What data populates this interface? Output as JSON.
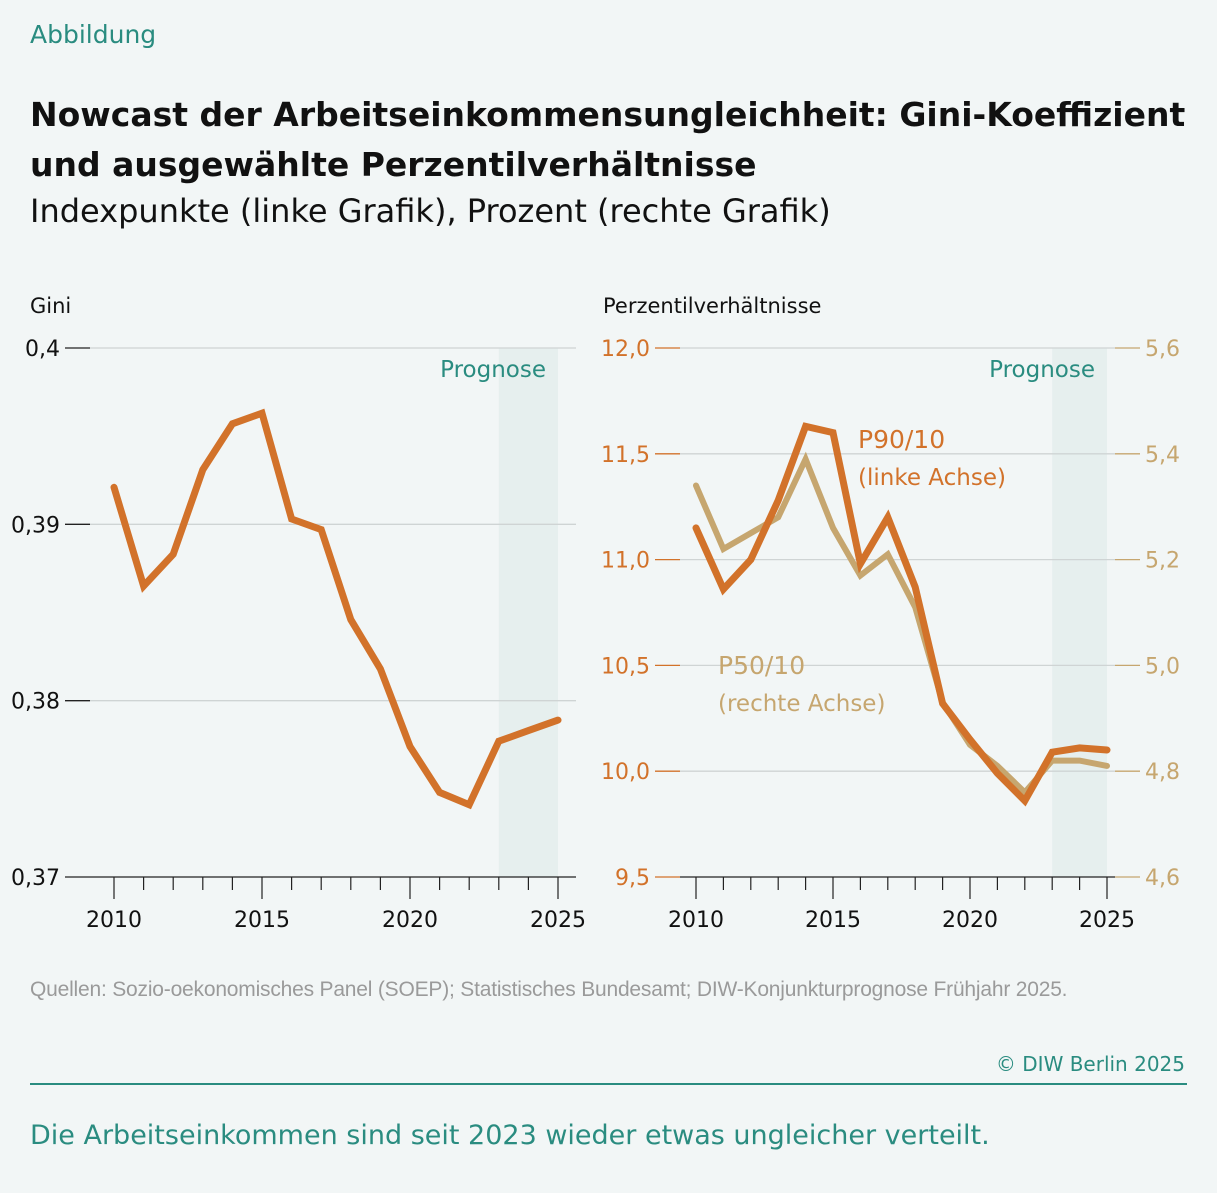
{
  "header": {
    "kicker": "Abbildung",
    "title": "Nowcast der Arbeitseinkommensungleichheit: Gini-Koeffizient und ausgewählte Perzentilverhältnisse",
    "subtitle": "Indexpunkte (linke Grafik), Prozent (rechte Grafik)"
  },
  "footer": {
    "source": "Quellen: Sozio-oekonomisches Panel (SOEP); Statistisches Bundesamt; DIW-Konjunkturprognose Frühjahr 2025.",
    "copyright": "© DIW Berlin 2025",
    "caption": "Die Arbeitseinkommen sind seit 2023 wieder etwas ungleicher verteilt."
  },
  "colors": {
    "accent": "#2a8c80",
    "gini": "#d2722a",
    "p90": "#d2722a",
    "p50": "#c6a66f",
    "forecast_shade": "#e6efee",
    "background": "#f2f6f6"
  },
  "chart_data": [
    {
      "type": "line",
      "ylabel": "Gini",
      "x": [
        2010,
        2011,
        2012,
        2013,
        2014,
        2015,
        2016,
        2017,
        2018,
        2019,
        2020,
        2021,
        2022,
        2023,
        2024,
        2025
      ],
      "xticks": [
        "2010",
        "2015",
        "2020",
        "2025"
      ],
      "ylim": [
        0.37,
        0.4
      ],
      "yticks": [
        "0,37",
        "0,38",
        "0,39",
        "0,4"
      ],
      "grid": true,
      "forecast": {
        "label": "Prognose",
        "from": 2023,
        "to": 2025
      },
      "series": [
        {
          "values": [
            0.3921,
            0.3865,
            0.3883,
            0.3931,
            0.3957,
            0.3963,
            0.3903,
            0.3897,
            0.3846,
            0.3818,
            0.3774,
            0.3748,
            0.3741,
            0.3777,
            0.3783,
            0.3789
          ]
        }
      ]
    },
    {
      "type": "line",
      "ylabel": "Perzentilverhältnisse",
      "x": [
        2010,
        2011,
        2012,
        2013,
        2014,
        2015,
        2016,
        2017,
        2018,
        2019,
        2020,
        2021,
        2022,
        2023,
        2024,
        2025
      ],
      "xticks": [
        "2010",
        "2015",
        "2020",
        "2025"
      ],
      "ylim_left": [
        9.5,
        12.0
      ],
      "yticks_left": [
        "9,5",
        "10,0",
        "10,5",
        "11,0",
        "11,5",
        "12,0"
      ],
      "ylim_right": [
        4.6,
        5.6
      ],
      "yticks_right": [
        "4,6",
        "4,8",
        "5,0",
        "5,2",
        "5,4",
        "5,6"
      ],
      "grid": true,
      "forecast": {
        "label": "Prognose",
        "from": 2023,
        "to": 2025
      },
      "series": [
        {
          "name": "P50/10",
          "axis_note": "(rechte Achse)",
          "axis": "right",
          "values": [
            5.34,
            5.22,
            5.25,
            5.28,
            5.39,
            5.26,
            5.17,
            5.21,
            5.11,
            4.93,
            4.85,
            4.81,
            4.76,
            4.82,
            4.82,
            4.81
          ]
        },
        {
          "name": "P90/10",
          "axis_note": "(linke Achse)",
          "axis": "left",
          "values": [
            11.15,
            10.86,
            11.0,
            11.28,
            11.63,
            11.6,
            10.98,
            11.2,
            10.87,
            10.32,
            10.15,
            9.99,
            9.86,
            10.09,
            10.11,
            10.1
          ]
        }
      ]
    }
  ]
}
